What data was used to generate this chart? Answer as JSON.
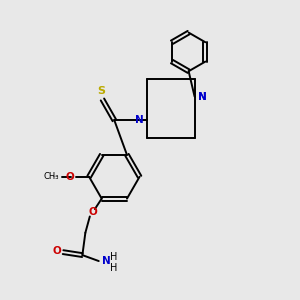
{
  "bg_color": "#e8e8e8",
  "line_color": "#000000",
  "N_color": "#0000cc",
  "O_color": "#cc0000",
  "S_color": "#bbaa00",
  "figsize": [
    3.0,
    3.0
  ],
  "dpi": 100,
  "xlim": [
    0,
    10
  ],
  "ylim": [
    0,
    10
  ]
}
